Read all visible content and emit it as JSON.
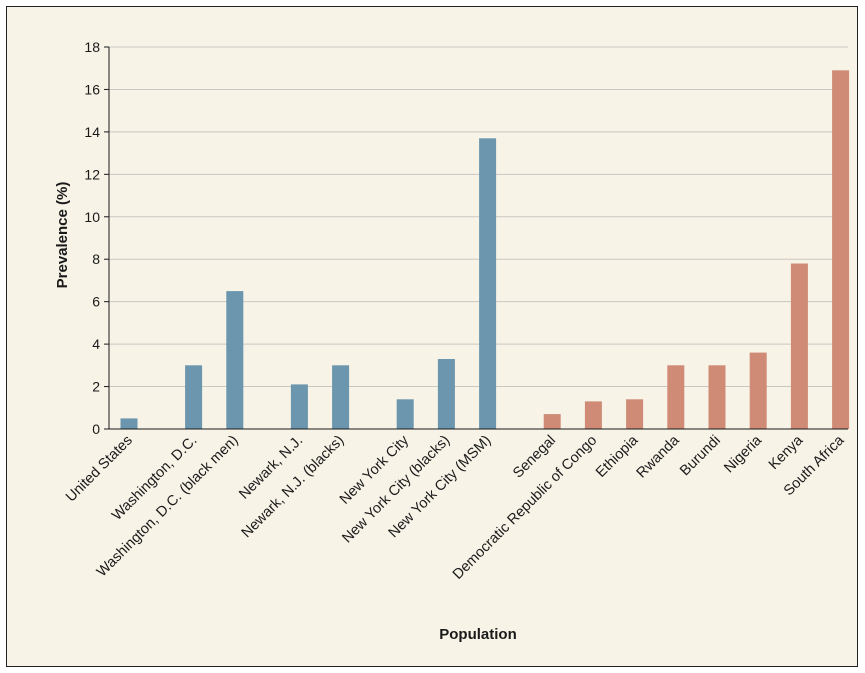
{
  "chart_data": {
    "type": "bar",
    "title": "",
    "xlabel": "Population",
    "ylabel": "Prevalence (%)",
    "ylim": [
      0,
      18
    ],
    "yticks": [
      0,
      2,
      4,
      6,
      8,
      10,
      12,
      14,
      16,
      18
    ],
    "grid": true,
    "categories": [
      "United States",
      "Washington, D.C.",
      "Washington, D.C. (black men)",
      "Newark, N.J.",
      "Newark, N.J. (blacks)",
      "New York City",
      "New York City (blacks)",
      "New York City (MSM)",
      "Senegal",
      "Democratic Republic of Congo",
      "Ethiopia",
      "Rwanda",
      "Burundi",
      "Nigeria",
      "Kenya",
      "South Africa"
    ],
    "values": [
      0.5,
      3.0,
      6.5,
      2.1,
      3.0,
      1.4,
      3.3,
      13.7,
      0.7,
      1.3,
      1.4,
      3.0,
      3.0,
      3.6,
      7.8,
      16.9
    ],
    "groups": [
      0,
      1,
      1,
      2,
      2,
      3,
      3,
      3,
      4,
      4,
      4,
      4,
      4,
      4,
      4,
      4
    ],
    "colors": {
      "us": "#6b96ad",
      "africa": "#cf8b76",
      "grid": "#c9c7c1",
      "axis": "#1a1a1a",
      "background": "#f7f3e7"
    }
  }
}
